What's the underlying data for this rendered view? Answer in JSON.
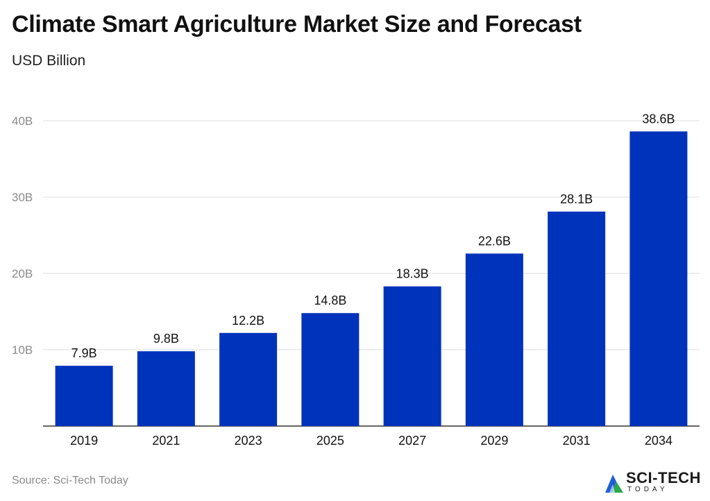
{
  "chart_data": {
    "type": "bar",
    "title": "Climate Smart Agriculture Market Size and Forecast",
    "subtitle": "USD Billion",
    "categories": [
      "2019",
      "2021",
      "2023",
      "2025",
      "2027",
      "2029",
      "2031",
      "2034"
    ],
    "values": [
      7.9,
      9.8,
      12.2,
      14.8,
      18.3,
      22.6,
      28.1,
      38.6
    ],
    "data_labels": [
      "7.9B",
      "9.8B",
      "12.2B",
      "14.8B",
      "18.3B",
      "22.6B",
      "28.1B",
      "38.6B"
    ],
    "y_ticks": [
      10,
      20,
      30,
      40
    ],
    "y_tick_labels": [
      "10B",
      "20B",
      "30B",
      "40B"
    ],
    "ylim": [
      0,
      40
    ],
    "grid": true,
    "bar_color": "#0033bb"
  },
  "footer": {
    "source": "Source: Sci-Tech Today",
    "logo_text": "SCI-TECH",
    "logo_sub": "TODAY"
  }
}
